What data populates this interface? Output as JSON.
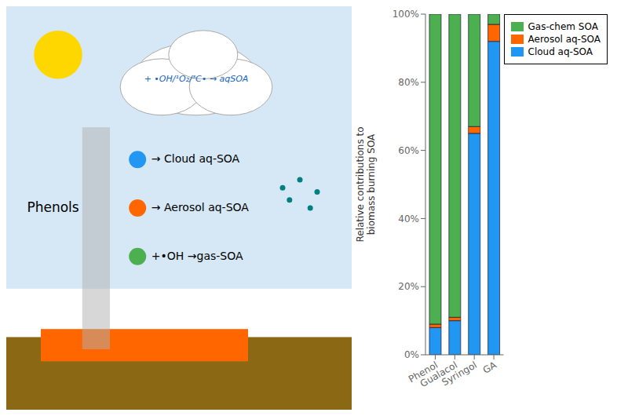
{
  "chart_data": {
    "type": "bar",
    "stacked": true,
    "categories": [
      "Phenol",
      "Gualacol",
      "Syringol",
      "GA"
    ],
    "ylabel": "Relative contributions to\nbiomass burning SOA",
    "series": [
      {
        "name": "Cloud aq-SOA",
        "color": "#2196F3",
        "values": [
          0.08,
          0.1,
          0.65,
          0.92
        ]
      },
      {
        "name": "Aerosol aq-SOA",
        "color": "#FF6600",
        "values": [
          0.01,
          0.01,
          0.02,
          0.05
        ]
      },
      {
        "name": "Gas-chem SOA",
        "color": "#4CAF50",
        "values": [
          0.91,
          0.89,
          0.33,
          0.03
        ]
      }
    ],
    "ylim": [
      0,
      1.0
    ],
    "yticks": [
      {
        "value": 0.0,
        "label": "0%"
      },
      {
        "value": 0.2,
        "label": "20%"
      },
      {
        "value": 0.4,
        "label": "40%"
      },
      {
        "value": 0.6,
        "label": "60%"
      },
      {
        "value": 0.8,
        "label": "80%"
      },
      {
        "value": 1.0,
        "label": "100%"
      }
    ],
    "legend": "upper right",
    "annotations": [
      "+ •OH/¹O₂/³C• → aqSOA",
      "→ Cloud aq-SOA",
      "→ Aerosol aq-SOA",
      "+•OH →gas-SOA",
      "Phenols"
    ]
  }
}
